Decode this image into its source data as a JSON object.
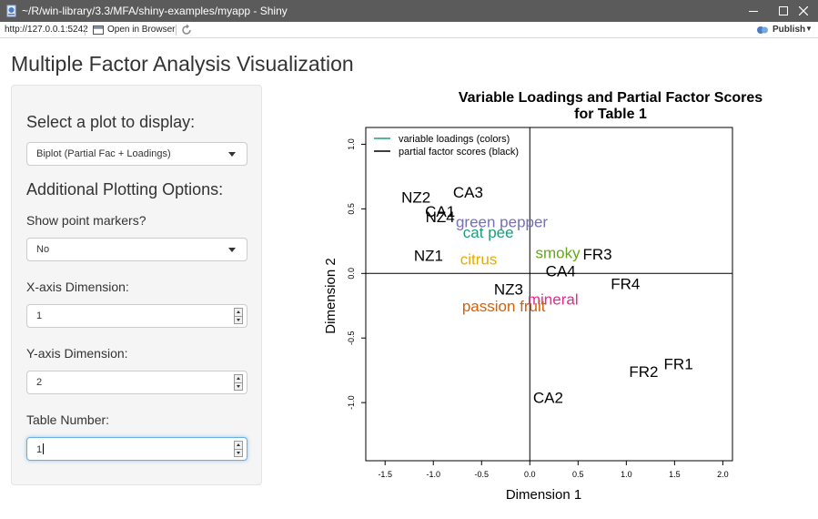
{
  "window": {
    "title": "~/R/win-library/3.3/MFA/shiny-examples/myapp - Shiny",
    "minimize_icon": "minimize-icon",
    "maximize_icon": "maximize-icon",
    "close_icon": "close-icon"
  },
  "toolbar": {
    "url": "http://127.0.0.1:5242",
    "open_in_browser": "Open in Browser",
    "publish": "Publish"
  },
  "page": {
    "title": "Multiple Factor Analysis Visualization"
  },
  "sidebar": {
    "plot_select_heading": "Select a plot to display:",
    "plot_select_value": "Biplot (Partial Fac + Loadings)",
    "options_heading": "Additional Plotting Options:",
    "markers_label": "Show point markers?",
    "markers_value": "No",
    "x_label": "X-axis Dimension:",
    "x_value": "1",
    "y_label": "Y-axis Dimension:",
    "y_value": "2",
    "table_label": "Table Number:",
    "table_value": "1"
  },
  "chart_data": {
    "type": "scatter",
    "title": "Variable Loadings and Partial Factor Scores\nfor Table 1",
    "xlabel": "Dimension 1",
    "ylabel": "Dimension 2",
    "xlim": [
      -1.7,
      2.1
    ],
    "ylim": [
      -1.45,
      1.13
    ],
    "x_ticks": [
      -1.5,
      -1.0,
      -0.5,
      0.0,
      0.5,
      1.0,
      1.5,
      2.0
    ],
    "x_tick_labels": [
      "-1.5",
      "-1.0",
      "-0.5",
      "0.0",
      "0.5",
      "1.0",
      "1.5",
      "2.0"
    ],
    "y_ticks": [
      -1.0,
      -0.5,
      0.0,
      0.5,
      1.0
    ],
    "y_tick_labels": [
      "-1.0",
      "-0.5",
      "0.0",
      "0.5",
      "1.0"
    ],
    "legend": {
      "position": "top-left",
      "entries": [
        {
          "label": "variable loadings (colors)",
          "color": "#1b9e77"
        },
        {
          "label": "partial factor scores (black)",
          "color": "#000000"
        }
      ]
    },
    "series": [
      {
        "name": "partial factor scores (black)",
        "color": "#000000",
        "points": [
          {
            "label": "NZ2",
            "x": -1.18,
            "y": 0.59
          },
          {
            "label": "CA3",
            "x": -0.64,
            "y": 0.63
          },
          {
            "label": "CA1",
            "x": -0.93,
            "y": 0.48
          },
          {
            "label": "NZ4",
            "x": -0.93,
            "y": 0.44
          },
          {
            "label": "NZ1",
            "x": -1.05,
            "y": 0.14
          },
          {
            "label": "FR3",
            "x": 0.7,
            "y": 0.15
          },
          {
            "label": "CA4",
            "x": 0.32,
            "y": 0.02
          },
          {
            "label": "FR4",
            "x": 0.99,
            "y": -0.08
          },
          {
            "label": "NZ3",
            "x": -0.22,
            "y": -0.12
          },
          {
            "label": "FR1",
            "x": 1.54,
            "y": -0.7
          },
          {
            "label": "FR2",
            "x": 1.18,
            "y": -0.76
          },
          {
            "label": "CA2",
            "x": 0.19,
            "y": -0.96
          }
        ]
      },
      {
        "name": "variable loadings (colors)",
        "points": [
          {
            "label": "green pepper",
            "x": -0.29,
            "y": 0.4,
            "color": "#7570b3"
          },
          {
            "label": "cat pee",
            "x": -0.43,
            "y": 0.32,
            "color": "#1b9e77"
          },
          {
            "label": "smoky",
            "x": 0.29,
            "y": 0.16,
            "color": "#66a61e"
          },
          {
            "label": "citrus",
            "x": -0.53,
            "y": 0.11,
            "color": "#e6ab02"
          },
          {
            "label": "mineral",
            "x": 0.24,
            "y": -0.2,
            "color": "#e7298a"
          },
          {
            "label": "passion fruit",
            "x": -0.27,
            "y": -0.25,
            "color": "#d95f02"
          }
        ]
      }
    ]
  }
}
